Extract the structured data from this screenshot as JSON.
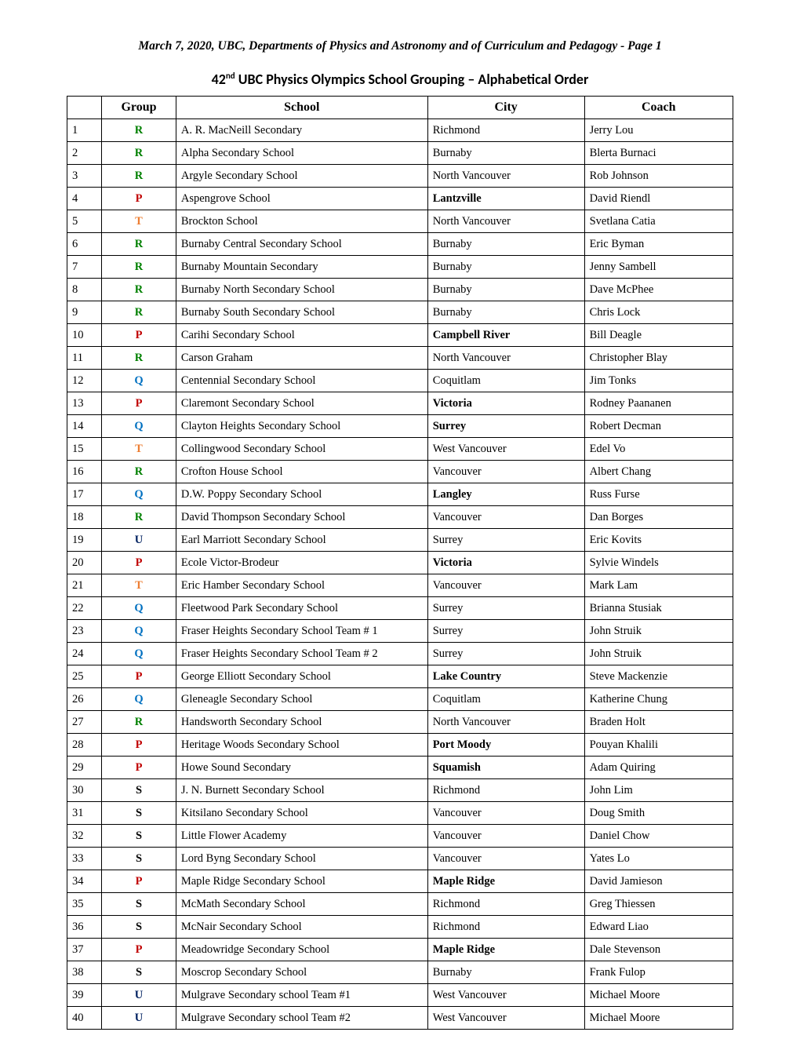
{
  "header": "March 7, 2020, UBC, Departments of Physics and Astronomy and of Curriculum and Pedagogy - Page 1",
  "title_prefix": "42",
  "title_super": "nd",
  "title_rest": " UBC Physics Olympics School Grouping – Alphabetical Order",
  "group_colors": {
    "R": "#008000",
    "P": "#c00000",
    "T": "#ed7d31",
    "Q": "#0070c0",
    "U": "#002060",
    "S": "#000000"
  },
  "columns": {
    "num": "",
    "group": "Group",
    "school": "School",
    "city": "City",
    "coach": "Coach"
  },
  "rows": [
    {
      "n": "1",
      "g": "R",
      "school": "A. R. MacNeill Secondary",
      "city": "Richmond",
      "coach": "Jerry Lou",
      "cb": false
    },
    {
      "n": "2",
      "g": "R",
      "school": "Alpha Secondary School",
      "city": "Burnaby",
      "coach": "Blerta Burnaci",
      "cb": false
    },
    {
      "n": "3",
      "g": "R",
      "school": "Argyle Secondary School",
      "city": "North Vancouver",
      "coach": "Rob Johnson",
      "cb": false
    },
    {
      "n": "4",
      "g": "P",
      "school": "Aspengrove School",
      "city": "Lantzville",
      "coach": "David Riendl",
      "cb": true
    },
    {
      "n": "5",
      "g": "T",
      "school": "Brockton School",
      "city": "North Vancouver",
      "coach": "Svetlana Catia",
      "cb": false
    },
    {
      "n": "6",
      "g": "R",
      "school": "Burnaby Central Secondary School",
      "city": "Burnaby",
      "coach": "Eric Byman",
      "cb": false
    },
    {
      "n": "7",
      "g": "R",
      "school": "Burnaby Mountain Secondary",
      "city": "Burnaby",
      "coach": "Jenny Sambell",
      "cb": false
    },
    {
      "n": "8",
      "g": "R",
      "school": "Burnaby North Secondary School",
      "city": "Burnaby",
      "coach": "Dave McPhee",
      "cb": false
    },
    {
      "n": "9",
      "g": "R",
      "school": "Burnaby South Secondary School",
      "city": "Burnaby",
      "coach": "Chris Lock",
      "cb": false
    },
    {
      "n": "10",
      "g": "P",
      "school": "Carihi Secondary School",
      "city": "Campbell River",
      "coach": "Bill Deagle",
      "cb": true
    },
    {
      "n": "11",
      "g": "R",
      "school": "Carson Graham",
      "city": "North Vancouver",
      "coach": "Christopher Blay",
      "cb": false
    },
    {
      "n": "12",
      "g": "Q",
      "school": "Centennial Secondary School",
      "city": "Coquitlam",
      "coach": "Jim Tonks",
      "cb": false
    },
    {
      "n": "13",
      "g": "P",
      "school": "Claremont Secondary School",
      "city": "Victoria",
      "coach": "Rodney Paananen",
      "cb": true
    },
    {
      "n": "14",
      "g": "Q",
      "school": "Clayton Heights Secondary School",
      "city": "Surrey",
      "coach": "Robert Decman",
      "cb": true
    },
    {
      "n": "15",
      "g": "T",
      "school": "Collingwood Secondary School",
      "city": "West Vancouver",
      "coach": "Edel Vo",
      "cb": false
    },
    {
      "n": "16",
      "g": "R",
      "school": "Crofton House School",
      "city": "Vancouver",
      "coach": "Albert Chang",
      "cb": false
    },
    {
      "n": "17",
      "g": "Q",
      "school": "D.W. Poppy Secondary School",
      "city": "Langley",
      "coach": "Russ Furse",
      "cb": true
    },
    {
      "n": "18",
      "g": "R",
      "school": "David Thompson Secondary School",
      "city": "Vancouver",
      "coach": "Dan Borges",
      "cb": false
    },
    {
      "n": "19",
      "g": "U",
      "school": "Earl Marriott Secondary School",
      "city": "Surrey",
      "coach": "Eric Kovits",
      "cb": false
    },
    {
      "n": "20",
      "g": "P",
      "school": "Ecole Victor-Brodeur",
      "city": "Victoria",
      "coach": "Sylvie Windels",
      "cb": true
    },
    {
      "n": "21",
      "g": "T",
      "school": "Eric Hamber Secondary School",
      "city": "Vancouver",
      "coach": "Mark Lam",
      "cb": false
    },
    {
      "n": "22",
      "g": "Q",
      "school": "Fleetwood Park Secondary School",
      "city": "Surrey",
      "coach": "Brianna Stusiak",
      "cb": false
    },
    {
      "n": "23",
      "g": "Q",
      "school": "Fraser Heights Secondary School Team # 1",
      "city": "Surrey",
      "coach": "John Struik",
      "cb": false
    },
    {
      "n": "24",
      "g": "Q",
      "school": "Fraser Heights Secondary School Team # 2",
      "city": "Surrey",
      "coach": "John Struik",
      "cb": false
    },
    {
      "n": "25",
      "g": "P",
      "school": "George Elliott Secondary School",
      "city": "Lake Country",
      "coach": "Steve Mackenzie",
      "cb": true
    },
    {
      "n": "26",
      "g": "Q",
      "school": "Gleneagle Secondary School",
      "city": "Coquitlam",
      "coach": "Katherine Chung",
      "cb": false
    },
    {
      "n": "27",
      "g": "R",
      "school": "Handsworth Secondary School",
      "city": "North Vancouver",
      "coach": "Braden Holt",
      "cb": false
    },
    {
      "n": "28",
      "g": "P",
      "school": "Heritage Woods Secondary School",
      "city": "Port Moody",
      "coach": "Pouyan Khalili",
      "cb": true
    },
    {
      "n": "29",
      "g": "P",
      "school": "Howe Sound Secondary",
      "city": "Squamish",
      "coach": "Adam Quiring",
      "cb": true
    },
    {
      "n": "30",
      "g": "S",
      "school": "J. N. Burnett Secondary School",
      "city": "Richmond",
      "coach": "John Lim",
      "cb": false
    },
    {
      "n": "31",
      "g": "S",
      "school": "Kitsilano Secondary School",
      "city": "Vancouver",
      "coach": "Doug Smith",
      "cb": false
    },
    {
      "n": "32",
      "g": "S",
      "school": "Little Flower Academy",
      "city": "Vancouver",
      "coach": "Daniel Chow",
      "cb": false
    },
    {
      "n": "33",
      "g": "S",
      "school": "Lord Byng Secondary School",
      "city": "Vancouver",
      "coach": "Yates Lo",
      "cb": false
    },
    {
      "n": "34",
      "g": "P",
      "school": "Maple Ridge Secondary School",
      "city": "Maple Ridge",
      "coach": "David Jamieson",
      "cb": true
    },
    {
      "n": "35",
      "g": "S",
      "school": "McMath Secondary School",
      "city": "Richmond",
      "coach": "Greg Thiessen",
      "cb": false
    },
    {
      "n": "36",
      "g": "S",
      "school": "McNair Secondary School",
      "city": "Richmond",
      "coach": "Edward Liao",
      "cb": false
    },
    {
      "n": "37",
      "g": "P",
      "school": "Meadowridge Secondary School",
      "city": "Maple Ridge",
      "coach": "Dale Stevenson",
      "cb": true
    },
    {
      "n": "38",
      "g": "S",
      "school": "Moscrop Secondary School",
      "city": "Burnaby",
      "coach": "Frank Fulop",
      "cb": false
    },
    {
      "n": "39",
      "g": "U",
      "school": "Mulgrave Secondary school Team #1",
      "city": "West Vancouver",
      "coach": "Michael Moore",
      "cb": false
    },
    {
      "n": "40",
      "g": "U",
      "school": "Mulgrave Secondary school Team #2",
      "city": "West Vancouver",
      "coach": "Michael Moore",
      "cb": false
    }
  ]
}
